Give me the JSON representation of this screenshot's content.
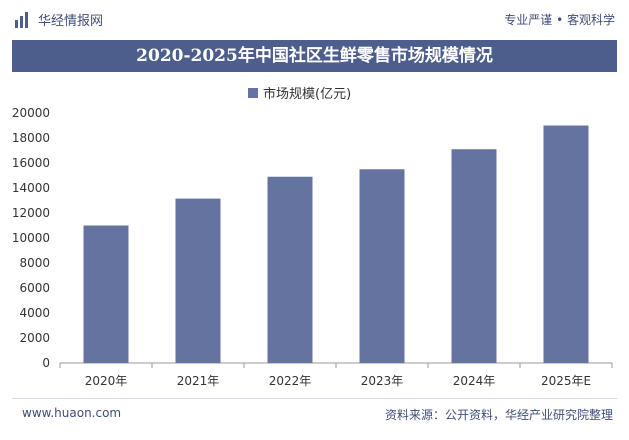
{
  "header": {
    "brand": "华经情报网",
    "slogan": "专业严谨 • 客观科学"
  },
  "chart_data": {
    "type": "bar",
    "title": "2020-2025年中国社区生鲜零售市场规模情况",
    "categories": [
      "2020年",
      "2021年",
      "2022年",
      "2023年",
      "2024年",
      "2025年E"
    ],
    "series": [
      {
        "name": "市场规模(亿元)",
        "values": [
          11000,
          13150,
          14900,
          15500,
          17100,
          19000
        ],
        "color": "#6473a0"
      }
    ],
    "ylim": [
      0,
      20000
    ],
    "yticks": [
      0,
      2000,
      4000,
      6000,
      8000,
      10000,
      12000,
      14000,
      16000,
      18000,
      20000
    ],
    "grid": false,
    "legend": "top-center"
  },
  "footer": {
    "url": "www.huaon.com",
    "source": "资料来源：公开资料，华经产业研究院整理"
  }
}
